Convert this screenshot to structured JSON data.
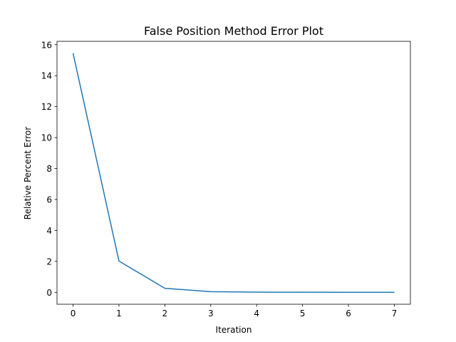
{
  "chart_data": {
    "type": "line",
    "title": "False Position Method Error Plot",
    "xlabel": "Iteration",
    "ylabel": "Relative Percent Error",
    "x": [
      0,
      1,
      2,
      3,
      4,
      5,
      6,
      7
    ],
    "series": [
      {
        "name": "Relative Percent Error",
        "values": [
          15.45,
          2.02,
          0.26,
          0.04,
          0.01,
          0.005,
          0.003,
          0.002
        ],
        "color": "#1f77b4"
      }
    ],
    "xlim": [
      -0.35,
      7.35
    ],
    "ylim": [
      -0.77,
      16.22
    ],
    "xticks": [
      0,
      1,
      2,
      3,
      4,
      5,
      6,
      7
    ],
    "yticks": [
      0,
      2,
      4,
      6,
      8,
      10,
      12,
      14,
      16
    ],
    "grid": false,
    "legend": "none"
  }
}
